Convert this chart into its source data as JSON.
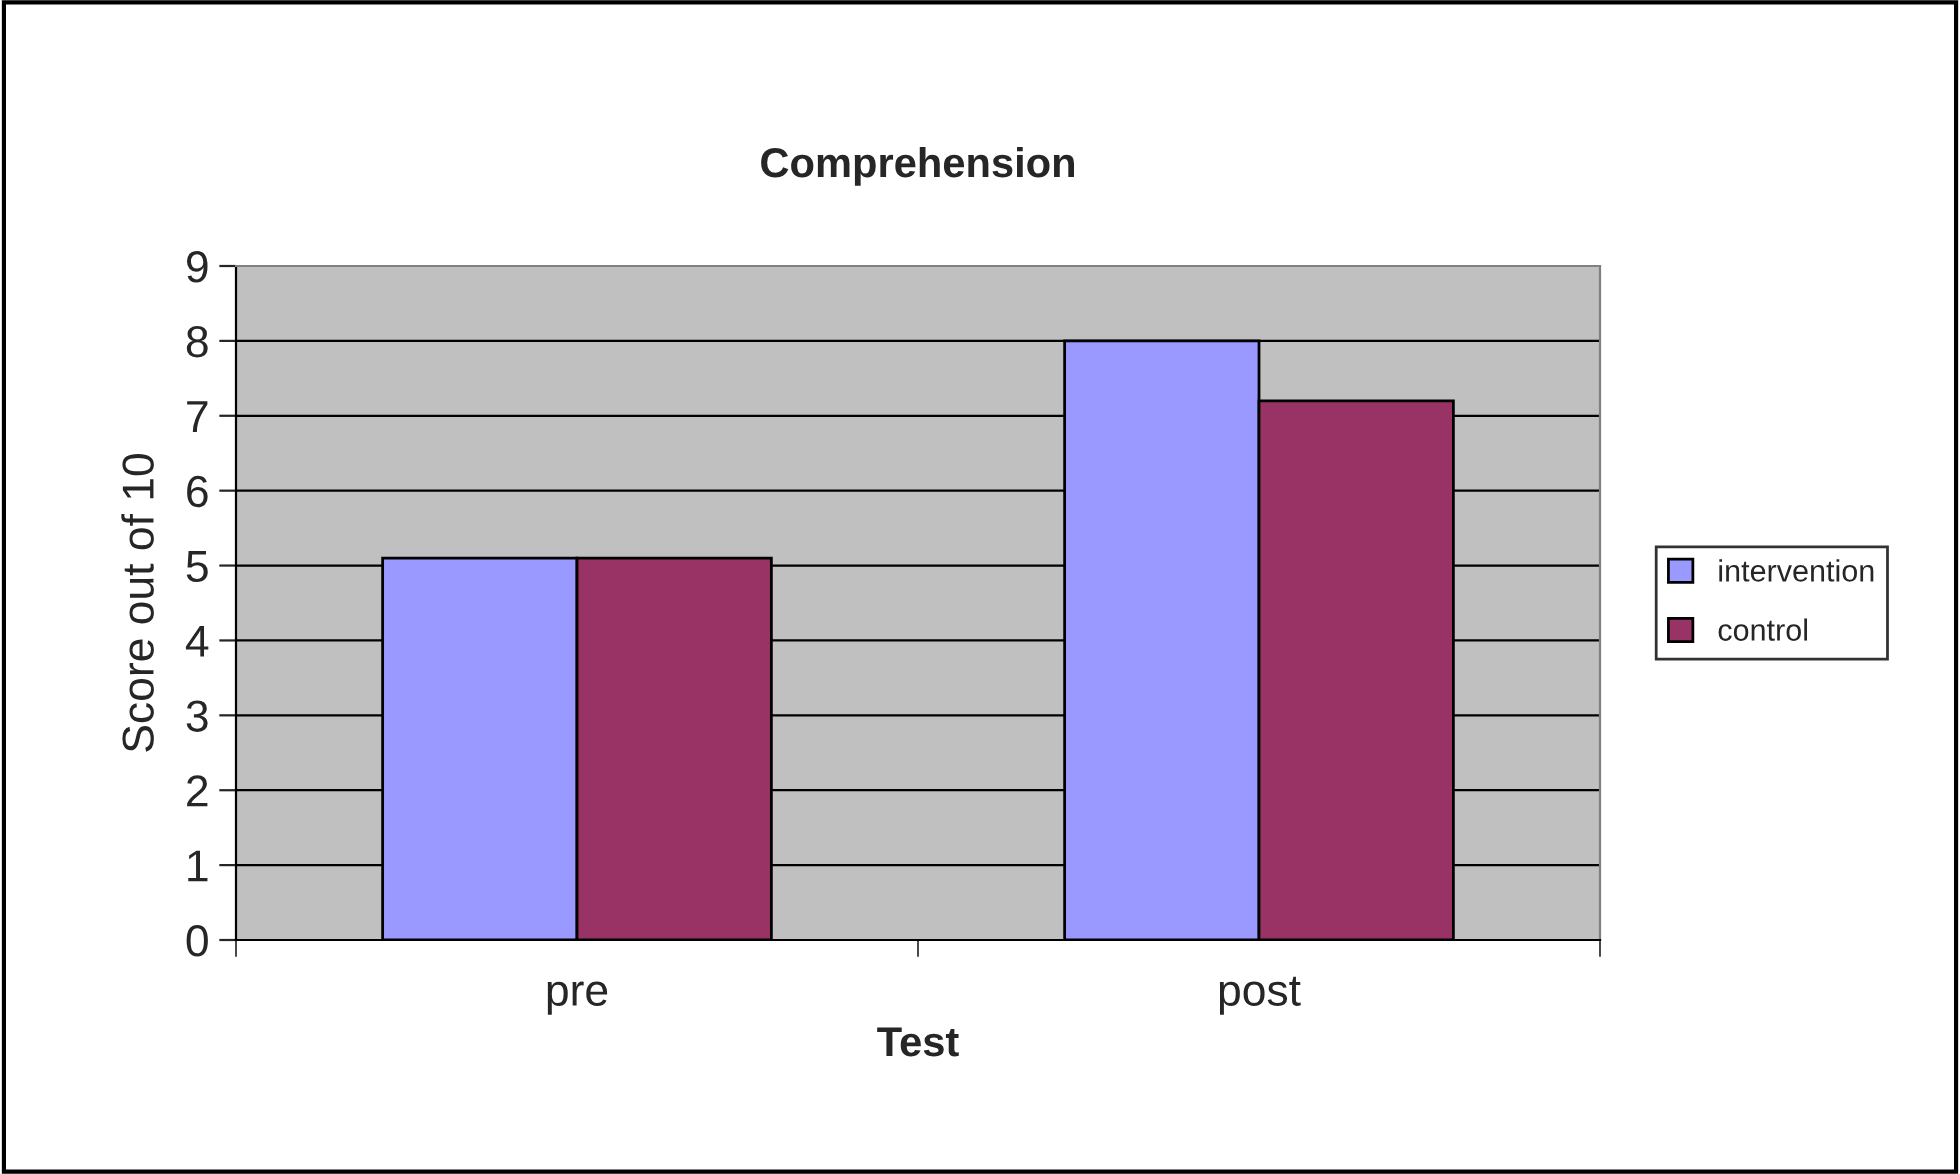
{
  "chart_data": {
    "type": "bar",
    "title": "Comprehension",
    "xlabel": "Test",
    "ylabel": "Score out of 10",
    "categories": [
      "pre",
      "post"
    ],
    "series": [
      {
        "name": "intervention",
        "color": "#9999ff",
        "values": [
          5.1,
          8.0
        ]
      },
      {
        "name": "control",
        "color": "#993366",
        "values": [
          5.1,
          7.2
        ]
      }
    ],
    "ylim": [
      0,
      9
    ],
    "yticks": [
      0,
      1,
      2,
      3,
      4,
      5,
      6,
      7,
      8,
      9
    ],
    "grid": "y",
    "legend": "right"
  }
}
